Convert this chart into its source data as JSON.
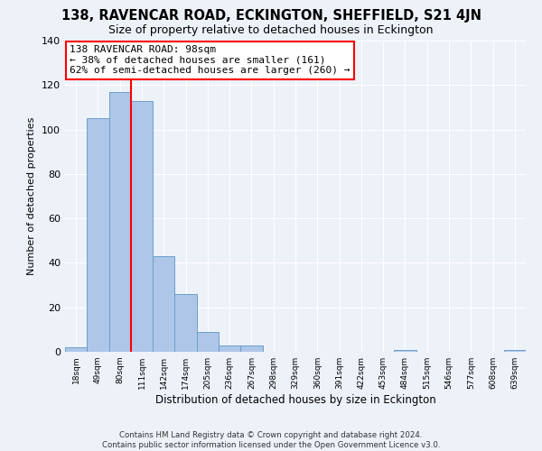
{
  "title": "138, RAVENCAR ROAD, ECKINGTON, SHEFFIELD, S21 4JN",
  "subtitle": "Size of property relative to detached houses in Eckington",
  "xlabel": "Distribution of detached houses by size in Eckington",
  "ylabel": "Number of detached properties",
  "bin_labels": [
    "18sqm",
    "49sqm",
    "80sqm",
    "111sqm",
    "142sqm",
    "174sqm",
    "205sqm",
    "236sqm",
    "267sqm",
    "298sqm",
    "329sqm",
    "360sqm",
    "391sqm",
    "422sqm",
    "453sqm",
    "484sqm",
    "515sqm",
    "546sqm",
    "577sqm",
    "608sqm",
    "639sqm"
  ],
  "bar_heights": [
    2,
    105,
    117,
    113,
    43,
    26,
    9,
    3,
    3,
    0,
    0,
    0,
    0,
    0,
    0,
    1,
    0,
    0,
    0,
    0,
    1
  ],
  "bar_color": "#aec6e8",
  "bar_edge_color": "#6ca0cd",
  "annotation_text": "138 RAVENCAR ROAD: 98sqm\n← 38% of detached houses are smaller (161)\n62% of semi-detached houses are larger (260) →",
  "annotation_box_color": "white",
  "annotation_box_edge_color": "red",
  "vline_color": "red",
  "ylim": [
    0,
    140
  ],
  "yticks": [
    0,
    20,
    40,
    60,
    80,
    100,
    120,
    140
  ],
  "background_color": "#edf2f9",
  "grid_color": "white",
  "footer": "Contains HM Land Registry data © Crown copyright and database right 2024.\nContains public sector information licensed under the Open Government Licence v3.0.",
  "title_fontsize": 10.5,
  "subtitle_fontsize": 9,
  "xlabel_fontsize": 8.5,
  "ylabel_fontsize": 8
}
